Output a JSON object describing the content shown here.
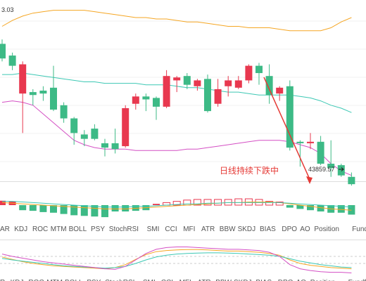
{
  "chart_data": {
    "type": "candlestick",
    "price_label": "3.03",
    "ylim": [
      43400,
      49600
    ],
    "candles": [
      {
        "o": 48100,
        "h": 48250,
        "c": 47600,
        "l": 47500
      },
      {
        "o": 47700,
        "h": 47800,
        "c": 47350,
        "l": 47200
      },
      {
        "o": 46400,
        "h": 47500,
        "c": 47400,
        "l": 45050
      },
      {
        "o": 46450,
        "h": 46550,
        "c": 46350,
        "l": 46000
      },
      {
        "o": 46500,
        "h": 46650,
        "c": 46400,
        "l": 46150
      },
      {
        "o": 46600,
        "h": 47350,
        "c": 45850,
        "l": 45800
      },
      {
        "o": 46000,
        "h": 46100,
        "c": 45550,
        "l": 45400
      },
      {
        "o": 45550,
        "h": 45600,
        "c": 45050,
        "l": 44650
      },
      {
        "o": 45000,
        "h": 45150,
        "c": 44850,
        "l": 44600
      },
      {
        "o": 45200,
        "h": 45350,
        "c": 44850,
        "l": 44800
      },
      {
        "o": 44700,
        "h": 44850,
        "c": 44550,
        "l": 44250
      },
      {
        "o": 44700,
        "h": 45200,
        "c": 44500,
        "l": 44350
      },
      {
        "o": 44600,
        "h": 46000,
        "c": 45900,
        "l": 44550
      },
      {
        "o": 46050,
        "h": 46400,
        "c": 46300,
        "l": 45850
      },
      {
        "o": 46300,
        "h": 46400,
        "c": 46200,
        "l": 45800
      },
      {
        "o": 46250,
        "h": 46300,
        "c": 45950,
        "l": 45500
      },
      {
        "o": 45950,
        "h": 47200,
        "c": 47000,
        "l": 45900
      },
      {
        "o": 46850,
        "h": 47000,
        "c": 46950,
        "l": 46450
      },
      {
        "o": 47000,
        "h": 47100,
        "c": 46700,
        "l": 46550
      },
      {
        "o": 46650,
        "h": 46900,
        "c": 46850,
        "l": 46500
      },
      {
        "o": 46900,
        "h": 47050,
        "c": 45800,
        "l": 45750
      },
      {
        "o": 46050,
        "h": 46900,
        "c": 46550,
        "l": 45950
      },
      {
        "o": 46650,
        "h": 47000,
        "c": 46850,
        "l": 46300
      },
      {
        "o": 46600,
        "h": 47000,
        "c": 46850,
        "l": 46550
      },
      {
        "o": 46850,
        "h": 47400,
        "c": 47350,
        "l": 46750
      },
      {
        "o": 47350,
        "h": 47450,
        "c": 47100,
        "l": 46700
      },
      {
        "o": 47000,
        "h": 47400,
        "c": 46350,
        "l": 46050
      },
      {
        "o": 46400,
        "h": 46650,
        "c": 46600,
        "l": 46150
      },
      {
        "o": 46650,
        "h": 46850,
        "c": 44550,
        "l": 44450
      },
      {
        "o": 44750,
        "h": 44800,
        "c": 44700,
        "l": 43900
      },
      {
        "o": 44700,
        "h": 45050,
        "c": 44750,
        "l": 44500
      },
      {
        "o": 44750,
        "h": 44950,
        "c": 44000,
        "l": 43950
      },
      {
        "o": 44000,
        "h": 44800,
        "c": 43850,
        "l": 43550
      },
      {
        "o": 43950,
        "h": 44000,
        "c": 43600,
        "l": 43550
      },
      {
        "o": 43550,
        "h": 43700,
        "c": 43300,
        "l": 43250
      }
    ],
    "bollinger": {
      "upper": [
        48700,
        48900,
        49050,
        49150,
        49200,
        49250,
        49250,
        49250,
        49250,
        49200,
        49150,
        49100,
        49050,
        49000,
        49000,
        48950,
        48950,
        48900,
        48850,
        48850,
        48800,
        48750,
        48700,
        48700,
        48650,
        48650,
        48650,
        48600,
        48550,
        48550,
        48550,
        48550,
        48650,
        48850,
        49000
      ],
      "middle": [
        47050,
        47050,
        47100,
        47050,
        47000,
        46950,
        46900,
        46850,
        46800,
        46800,
        46750,
        46750,
        46750,
        46750,
        46700,
        46700,
        46700,
        46650,
        46600,
        46600,
        46550,
        46500,
        46450,
        46450,
        46400,
        46350,
        46350,
        46350,
        46350,
        46300,
        46250,
        46150,
        46000,
        45900,
        45750
      ],
      "lower": [
        46100,
        46150,
        46100,
        46000,
        45700,
        45400,
        45100,
        44800,
        44650,
        44550,
        44500,
        44500,
        44500,
        44450,
        44450,
        44450,
        44450,
        44450,
        44500,
        44500,
        44550,
        44600,
        44650,
        44700,
        44750,
        44800,
        44800,
        44800,
        44750,
        44650,
        44550,
        44350,
        44000,
        43750,
        43600
      ]
    },
    "annotation": "日线持续下跌中",
    "price_tag": "43859.57",
    "indicator_tabs": [
      "AR",
      "KDJ",
      "ROC",
      "MTM",
      "BOLL",
      "PSY",
      "StochRSI",
      "SMI",
      "CCI",
      "MFI",
      "ATR",
      "BBW",
      "SKDJ",
      "BIAS",
      "DPO",
      "AO",
      "Position",
      "Fundflow"
    ],
    "active_tab": "KDJ",
    "bottom_tabs": [
      "R",
      "KDJ",
      "ROC",
      "MTM",
      "BOLL",
      "PSY",
      "StochRSI",
      "SMI",
      "CCI",
      "MFI",
      "ATR",
      "BBW",
      "SKDJ",
      "BIAS",
      "DPO",
      "AO",
      "Position",
      "Fundflow"
    ],
    "oscillator": {
      "hist": [
        0.35,
        0.3,
        -0.4,
        -0.45,
        -0.55,
        -0.6,
        -0.7,
        -0.8,
        -0.85,
        -0.9,
        -0.95,
        -0.5,
        -0.5,
        -0.45,
        -0.4,
        0.1,
        0.2,
        0.3,
        0.4,
        0.45,
        0.45,
        0.45,
        0.45,
        0.5,
        0.5,
        0.45,
        0.3,
        0.25,
        -0.2,
        -0.3,
        -0.4,
        -0.5,
        -0.6,
        -0.6,
        -0.75
      ],
      "line1": [
        0.2,
        0.15,
        0.1,
        0.05,
        0.0,
        -0.05,
        -0.1,
        -0.15,
        -0.2,
        -0.25,
        -0.3,
        -0.3,
        -0.3,
        -0.25,
        -0.2,
        -0.15,
        -0.1,
        -0.05,
        0.0,
        0.05,
        0.1,
        0.15,
        0.2,
        0.2,
        0.25,
        0.25,
        0.25,
        0.2,
        0.1,
        0.0,
        -0.1,
        -0.2,
        -0.3,
        -0.35,
        -0.4
      ],
      "line2": [
        0.3,
        0.3,
        0.25,
        0.2,
        0.15,
        0.1,
        0.05,
        0.0,
        -0.05,
        -0.1,
        -0.15,
        -0.15,
        -0.15,
        -0.1,
        -0.1,
        -0.05,
        0.0,
        0.05,
        0.1,
        0.1,
        0.15,
        0.15,
        0.2,
        0.2,
        0.2,
        0.2,
        0.2,
        0.2,
        0.15,
        0.1,
        0.05,
        0.0,
        -0.05,
        -0.1,
        -0.15
      ]
    },
    "oscillator2": {
      "l1": [
        60,
        52,
        44,
        38,
        34,
        30,
        28,
        26,
        24,
        22,
        20,
        24,
        34,
        52,
        68,
        78,
        82,
        84,
        85,
        85,
        84,
        82,
        80,
        80,
        78,
        76,
        72,
        66,
        50,
        38,
        32,
        28,
        24,
        22,
        20
      ],
      "l2": [
        55,
        50,
        46,
        42,
        38,
        34,
        30,
        28,
        26,
        24,
        22,
        24,
        28,
        38,
        50,
        60,
        66,
        70,
        72,
        73,
        74,
        74,
        73,
        72,
        70,
        68,
        66,
        62,
        54,
        46,
        40,
        34,
        30,
        26,
        24
      ],
      "l3": [
        70,
        62,
        56,
        50,
        44,
        40,
        36,
        32,
        28,
        24,
        20,
        18,
        28,
        50,
        72,
        86,
        92,
        94,
        94,
        92,
        90,
        88,
        86,
        86,
        84,
        82,
        76,
        62,
        34,
        20,
        14,
        10,
        8,
        8,
        6
      ]
    }
  }
}
